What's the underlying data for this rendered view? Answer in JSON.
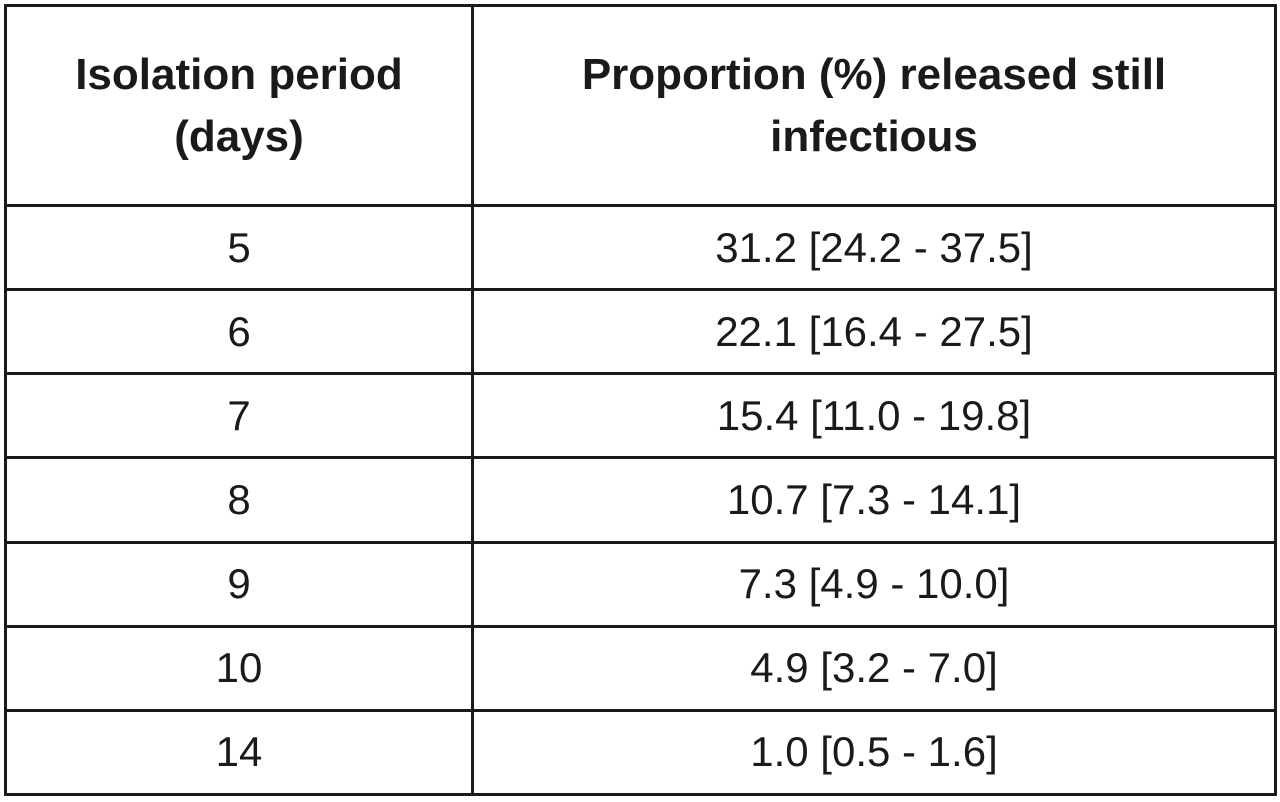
{
  "table": {
    "headers": [
      "Isolation period\n(days)",
      "Proportion (%) released still\ninfectious"
    ],
    "rows": [
      {
        "days": "5",
        "proportion": "31.2 [24.2 - 37.5]"
      },
      {
        "days": "6",
        "proportion": "22.1 [16.4 - 27.5]"
      },
      {
        "days": "7",
        "proportion": "15.4 [11.0 - 19.8]"
      },
      {
        "days": "8",
        "proportion": "10.7 [7.3 - 14.1]"
      },
      {
        "days": "9",
        "proportion": "7.3 [4.9 - 10.0]"
      },
      {
        "days": "10",
        "proportion": "4.9 [3.2 - 7.0]"
      },
      {
        "days": "14",
        "proportion": "1.0 [0.5 - 1.6]"
      }
    ]
  }
}
